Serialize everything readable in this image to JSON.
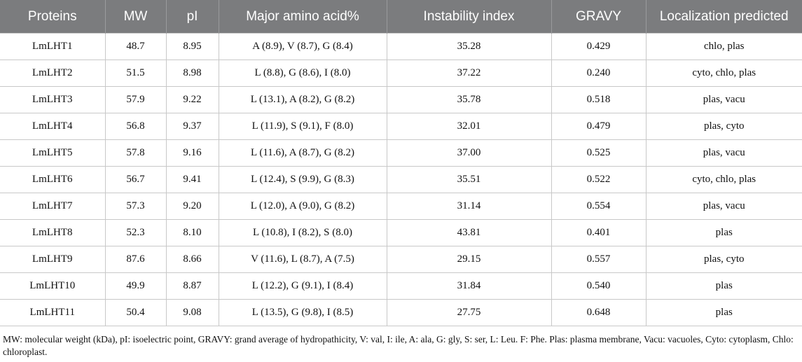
{
  "table": {
    "headers": [
      "Proteins",
      "MW",
      "pI",
      "Major amino acid%",
      "Instability index",
      "GRAVY",
      "Localization predicted"
    ],
    "rows": [
      [
        "LmLHT1",
        "48.7",
        "8.95",
        "A (8.9), V (8.7), G (8.4)",
        "35.28",
        "0.429",
        "chlo, plas"
      ],
      [
        "LmLHT2",
        "51.5",
        "8.98",
        "L (8.8), G (8.6), I (8.0)",
        "37.22",
        "0.240",
        "cyto, chlo, plas"
      ],
      [
        "LmLHT3",
        "57.9",
        "9.22",
        "L (13.1), A (8.2), G (8.2)",
        "35.78",
        "0.518",
        "plas, vacu"
      ],
      [
        "LmLHT4",
        "56.8",
        "9.37",
        "L (11.9), S (9.1), F (8.0)",
        "32.01",
        "0.479",
        "plas, cyto"
      ],
      [
        "LmLHT5",
        "57.8",
        "9.16",
        "L (11.6), A (8.7), G (8.2)",
        "37.00",
        "0.525",
        "plas, vacu"
      ],
      [
        "LmLHT6",
        "56.7",
        "9.41",
        "L (12.4), S (9.9), G (8.3)",
        "35.51",
        "0.522",
        "cyto, chlo, plas"
      ],
      [
        "LmLHT7",
        "57.3",
        "9.20",
        "L (12.0), A (9.0), G (8.2)",
        "31.14",
        "0.554",
        "plas, vacu"
      ],
      [
        "LmLHT8",
        "52.3",
        "8.10",
        "L (10.8), I (8.2), S (8.0)",
        "43.81",
        "0.401",
        "plas"
      ],
      [
        "LmLHT9",
        "87.6",
        "8.66",
        "V (11.6), L (8.7), A (7.5)",
        "29.15",
        "0.557",
        "plas, cyto"
      ],
      [
        "LmLHT10",
        "49.9",
        "8.87",
        "L (12.2), G (9.1), I (8.4)",
        "31.84",
        "0.540",
        "plas"
      ],
      [
        "LmLHT11",
        "50.4",
        "9.08",
        "L (13.5), G (9.8), I (8.5)",
        "27.75",
        "0.648",
        "plas"
      ]
    ]
  },
  "footnote": "MW: molecular weight (kDa), pI: isoelectric point, GRAVY: grand average of hydropathicity, V: val, I: ile, A: ala, G: gly, S: ser, L: Leu. F: Phe. Plas: plasma membrane, Vacu: vacuoles, Cyto: cytoplasm, Chlo: chloroplast.",
  "colors": {
    "header_background": "#7b7c7e",
    "header_text": "#ffffff",
    "grid_lines": "#c8c8c8"
  }
}
